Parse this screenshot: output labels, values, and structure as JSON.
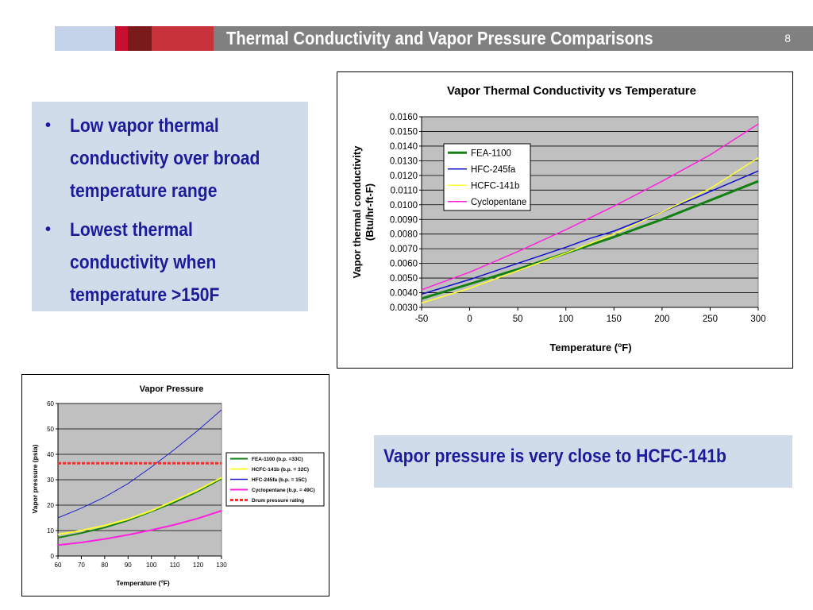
{
  "header": {
    "title": "Thermal Conductivity and Vapor Pressure Comparisons",
    "page_number": "8",
    "colors": {
      "bar": "#808080",
      "light_block": "#c5d3ea",
      "red_a": "#c8102e",
      "red_b": "#7a1a1a",
      "red_c": "#c8323a"
    }
  },
  "bullets": [
    {
      "lines": [
        "Low vapor thermal",
        "conductivity over broad",
        "temperature range"
      ]
    },
    {
      "lines": [
        "Lowest thermal",
        "conductivity when",
        "temperature >150F"
      ]
    }
  ],
  "bullet_glyph": "•",
  "callout": {
    "text": "Vapor pressure is very close to HCFC-141b"
  },
  "chart_data": [
    {
      "type": "line",
      "title": "Vapor Thermal Conductivity vs Temperature",
      "xlabel_parts": [
        "Temperature (",
        "o",
        "F)"
      ],
      "ylabel_lines": [
        "Vapor thermal conductivity",
        "(Btu/hr-ft-F)"
      ],
      "xlim": [
        -50,
        300
      ],
      "ylim": [
        0.003,
        0.016
      ],
      "xticks": [
        -50,
        0,
        50,
        100,
        150,
        200,
        250,
        300
      ],
      "xtick_labels": [
        "-50",
        "0",
        "50",
        "100",
        "150",
        "200",
        "250",
        "300"
      ],
      "yticks": [
        0.003,
        0.004,
        0.005,
        0.006,
        0.007,
        0.008,
        0.009,
        0.01,
        0.011,
        0.012,
        0.013,
        0.014,
        0.015,
        0.016
      ],
      "ytick_labels": [
        "0.0030",
        "0.0040",
        "0.0050",
        "0.0060",
        "0.0070",
        "0.0080",
        "0.0090",
        "0.0100",
        "0.0110",
        "0.0120",
        "0.0130",
        "0.0140",
        "0.0150",
        "0.0160"
      ],
      "grid": true,
      "plot_bg": "#c0c0c0",
      "legend_position": "top-left",
      "series": [
        {
          "name": "FEA-1100",
          "color": "#138013",
          "width": 3,
          "x": [
            -50,
            0,
            50,
            100,
            150,
            200,
            250,
            300
          ],
          "y": [
            0.0036,
            0.0046,
            0.0056,
            0.0067,
            0.0078,
            0.009,
            0.0103,
            0.0116
          ]
        },
        {
          "name": "HFC-245fa",
          "color": "#1010cc",
          "width": 1.5,
          "x": [
            -50,
            0,
            50,
            100,
            125,
            150,
            200,
            250,
            300
          ],
          "y": [
            0.0039,
            0.0049,
            0.006,
            0.0071,
            0.0077,
            0.0082,
            0.0095,
            0.0109,
            0.0123
          ]
        },
        {
          "name": "HCFC-141b",
          "color": "#ffff33",
          "width": 1.5,
          "x": [
            -50,
            0,
            50,
            100,
            150,
            200,
            250,
            300
          ],
          "y": [
            0.0033,
            0.0043,
            0.0055,
            0.0067,
            0.008,
            0.0095,
            0.0111,
            0.0132
          ]
        },
        {
          "name": "Cyclopentane",
          "color": "#ff22dd",
          "width": 1.5,
          "x": [
            -50,
            0,
            50,
            100,
            150,
            200,
            250,
            300
          ],
          "y": [
            0.0042,
            0.0054,
            0.0068,
            0.0083,
            0.0099,
            0.0116,
            0.0134,
            0.0155
          ]
        }
      ]
    },
    {
      "type": "line",
      "title": "Vapor Pressure",
      "xlabel_parts": [
        "Temperature (",
        "o",
        "F)"
      ],
      "ylabel_lines": [
        "Vapor pressure (psia)"
      ],
      "xlim": [
        60,
        130
      ],
      "ylim": [
        0,
        60
      ],
      "xticks": [
        60,
        70,
        80,
        90,
        100,
        110,
        120,
        130
      ],
      "xtick_labels": [
        "60",
        "70",
        "80",
        "90",
        "100",
        "110",
        "120",
        "130"
      ],
      "yticks": [
        0,
        10,
        20,
        30,
        40,
        50,
        60
      ],
      "ytick_labels": [
        "0",
        "10",
        "20",
        "30",
        "40",
        "50",
        "60"
      ],
      "grid": true,
      "plot_bg": "#c0c0c0",
      "legend_position": "right",
      "series": [
        {
          "name": "FEA-1100 (b.p. =33C)",
          "color": "#138013",
          "width": 2,
          "x": [
            60,
            70,
            80,
            90,
            100,
            110,
            120,
            130
          ],
          "y": [
            7.2,
            9.0,
            11.2,
            14.0,
            17.5,
            21.2,
            25.5,
            30.4
          ]
        },
        {
          "name": "HCFC-141b (b.p. = 32C)",
          "color": "#ffff33",
          "width": 2,
          "x": [
            60,
            70,
            80,
            90,
            100,
            110,
            120,
            130
          ],
          "y": [
            8.5,
            10.0,
            12.0,
            14.5,
            17.8,
            21.8,
            26.0,
            30.8
          ]
        },
        {
          "name": "HFC-245fa (b.p. = 15C)",
          "color": "#2020cc",
          "width": 1,
          "x": [
            60,
            70,
            80,
            90,
            100,
            110,
            120,
            130
          ],
          "y": [
            15.0,
            18.8,
            23.2,
            28.5,
            35.0,
            42.0,
            49.5,
            57.5
          ]
        },
        {
          "name": "Cyclopentane (b.p. = 49C)",
          "color": "#ff22dd",
          "width": 2,
          "x": [
            60,
            70,
            80,
            90,
            100,
            110,
            120,
            130
          ],
          "y": [
            4.3,
            5.3,
            6.7,
            8.3,
            10.2,
            12.3,
            14.8,
            17.8
          ]
        },
        {
          "name": "Drum pressure rating",
          "color": "#ff2a2a",
          "width": 3,
          "dashed": true,
          "x": [
            60,
            130
          ],
          "y": [
            36.5,
            36.5
          ]
        }
      ]
    }
  ]
}
